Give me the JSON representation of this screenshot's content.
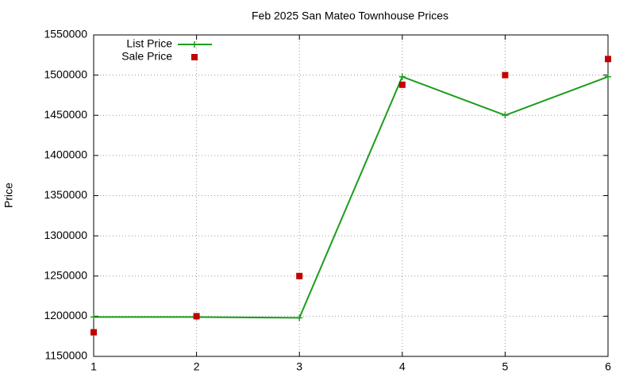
{
  "chart_data": {
    "type": "line",
    "title": "Feb 2025 San Mateo Townhouse Prices",
    "y_label": "Price",
    "x": [
      1,
      2,
      3,
      4,
      5,
      6
    ],
    "series": [
      {
        "name": "List Price",
        "color": "#1a9e1a",
        "style": "linespoints",
        "values": [
          1199000,
          1199000,
          1198000,
          1498000,
          1450000,
          1498000
        ]
      },
      {
        "name": "Sale Price",
        "color": "#c00000",
        "style": "points",
        "values": [
          1180000,
          1200000,
          1250000,
          1488000,
          1500000,
          1520000
        ]
      }
    ],
    "xlim": [
      1,
      6
    ],
    "xticks": [
      1,
      2,
      3,
      4,
      5,
      6
    ],
    "ylim": [
      1150000,
      1550000
    ],
    "yticks": [
      1150000,
      1200000,
      1250000,
      1300000,
      1350000,
      1400000,
      1450000,
      1500000,
      1550000
    ],
    "grid": true,
    "legend": "top-left"
  }
}
